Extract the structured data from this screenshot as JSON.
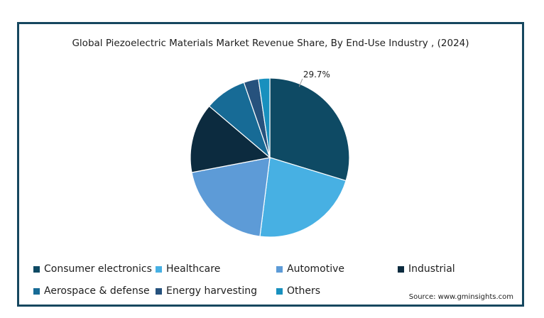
{
  "chart_data": {
    "type": "pie",
    "title": "Global Piezoelectric Materials Market Revenue Share, By End-Use Industry , (2024)",
    "source": "Source: www.gminsights.com",
    "start_angle_deg": 0,
    "direction": "clockwise",
    "legend_position": "bottom",
    "slices": [
      {
        "name": "Consumer electronics",
        "value": 29.7,
        "color": "#0e4a64",
        "label": "29.7%"
      },
      {
        "name": "Healthcare",
        "value": 22.3,
        "color": "#47b0e3",
        "label": ""
      },
      {
        "name": "Automotive",
        "value": 20.0,
        "color": "#5d9bd7",
        "label": ""
      },
      {
        "name": "Industrial",
        "value": 14.2,
        "color": "#0c2b3f",
        "label": ""
      },
      {
        "name": "Aerospace & defense",
        "value": 8.5,
        "color": "#176b96",
        "label": ""
      },
      {
        "name": "Energy harvesting",
        "value": 3.0,
        "color": "#26527d",
        "label": ""
      },
      {
        "name": "Others",
        "value": 2.3,
        "color": "#1890be",
        "label": ""
      }
    ]
  }
}
